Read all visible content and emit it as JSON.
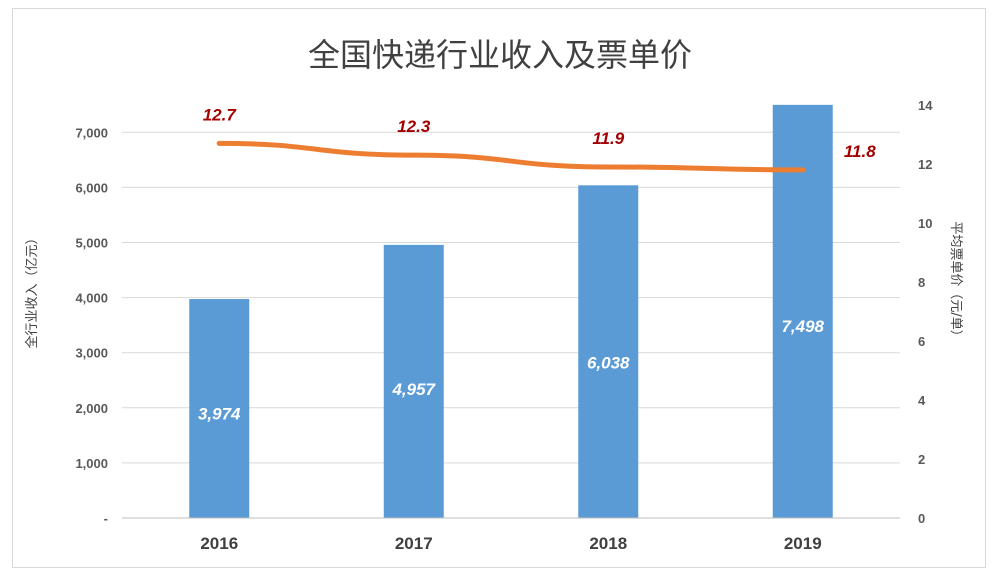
{
  "chart_data": {
    "type": "bar+line",
    "title": "全国快递行业收入及票单价",
    "categories": [
      "2016",
      "2017",
      "2018",
      "2019"
    ],
    "series": [
      {
        "type": "bar",
        "axis": "left",
        "values": [
          3974,
          4957,
          6038,
          7498
        ],
        "labels": [
          "3,974",
          "4,957",
          "6,038",
          "7,498"
        ],
        "color": "#5b9bd5"
      },
      {
        "type": "line",
        "axis": "right",
        "values": [
          12.7,
          12.3,
          11.9,
          11.8
        ],
        "labels": [
          "12.7",
          "12.3",
          "11.9",
          "11.8"
        ],
        "color": "#ed7d31",
        "label_color": "#a50000"
      }
    ],
    "ylabel_left": "全行业收入（亿元）",
    "ylabel_right": "平均票单价（元/单）",
    "ylim_left": [
      0,
      7500
    ],
    "ylim_right": [
      0,
      14
    ],
    "yticks_left": [
      "-",
      "1,000",
      "2,000",
      "3,000",
      "4,000",
      "5,000",
      "6,000",
      "7,000"
    ],
    "yticks_right": [
      "0",
      "2",
      "4",
      "6",
      "8",
      "10",
      "12",
      "14"
    ],
    "grid": true,
    "legend": "none"
  }
}
